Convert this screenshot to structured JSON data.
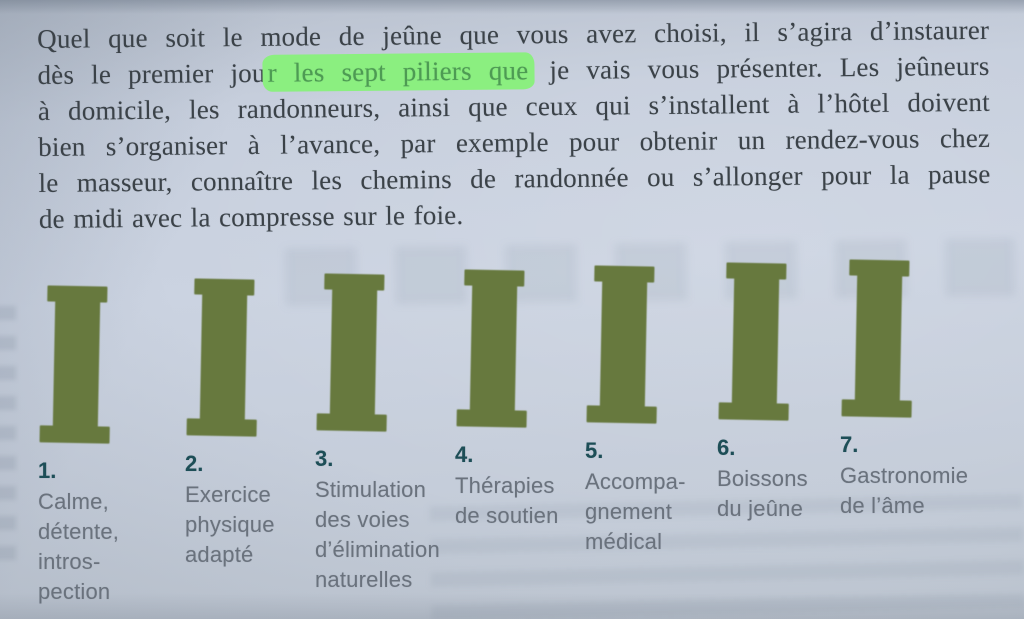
{
  "paragraph": {
    "line1": "Quel que soit le mode de jeûne que vous avez choisi, il s’agira d’instaurer",
    "line2_pre": "dès le premier jou",
    "line2_highlight": "r les sept piliers que",
    "line2_post": " je vais vous présenter. Les jeûneurs",
    "line3": "à domicile, les randonneurs, ainsi que ceux qui s’installent à l’hôtel doivent",
    "line4": "bien s’organiser à l’avance, par exemple pour obtenir un rendez-vous chez",
    "line5": "le masseur, connaître les chemins de randonnée ou s’allonger pour la pause",
    "line6": "de midi avec la compresse sur le foie."
  },
  "pillars": [
    {
      "number": "1.",
      "label": "Calme,\ndétente,\nintros-\npection"
    },
    {
      "number": "2.",
      "label": "Exercice\nphysique\nadapté"
    },
    {
      "number": "3.",
      "label": "Stimulation\ndes voies\nd’élimination\nnaturelles"
    },
    {
      "number": "4.",
      "label": "Thérapies\nde soutien"
    },
    {
      "number": "5.",
      "label": "Accompa-\ngnement\nmédical"
    },
    {
      "number": "6.",
      "label": "Boissons\ndu jeûne"
    },
    {
      "number": "7.",
      "label": "Gastronomie\nde l’âme"
    }
  ],
  "colors": {
    "page_bg": "#c7cfdd",
    "body_text": "#3b4248",
    "highlight": "#8bef80",
    "highlight_text": "#4d9b53",
    "pillar": "#67793e",
    "number_text": "#1d4e57",
    "label_text": "#6a727d"
  }
}
